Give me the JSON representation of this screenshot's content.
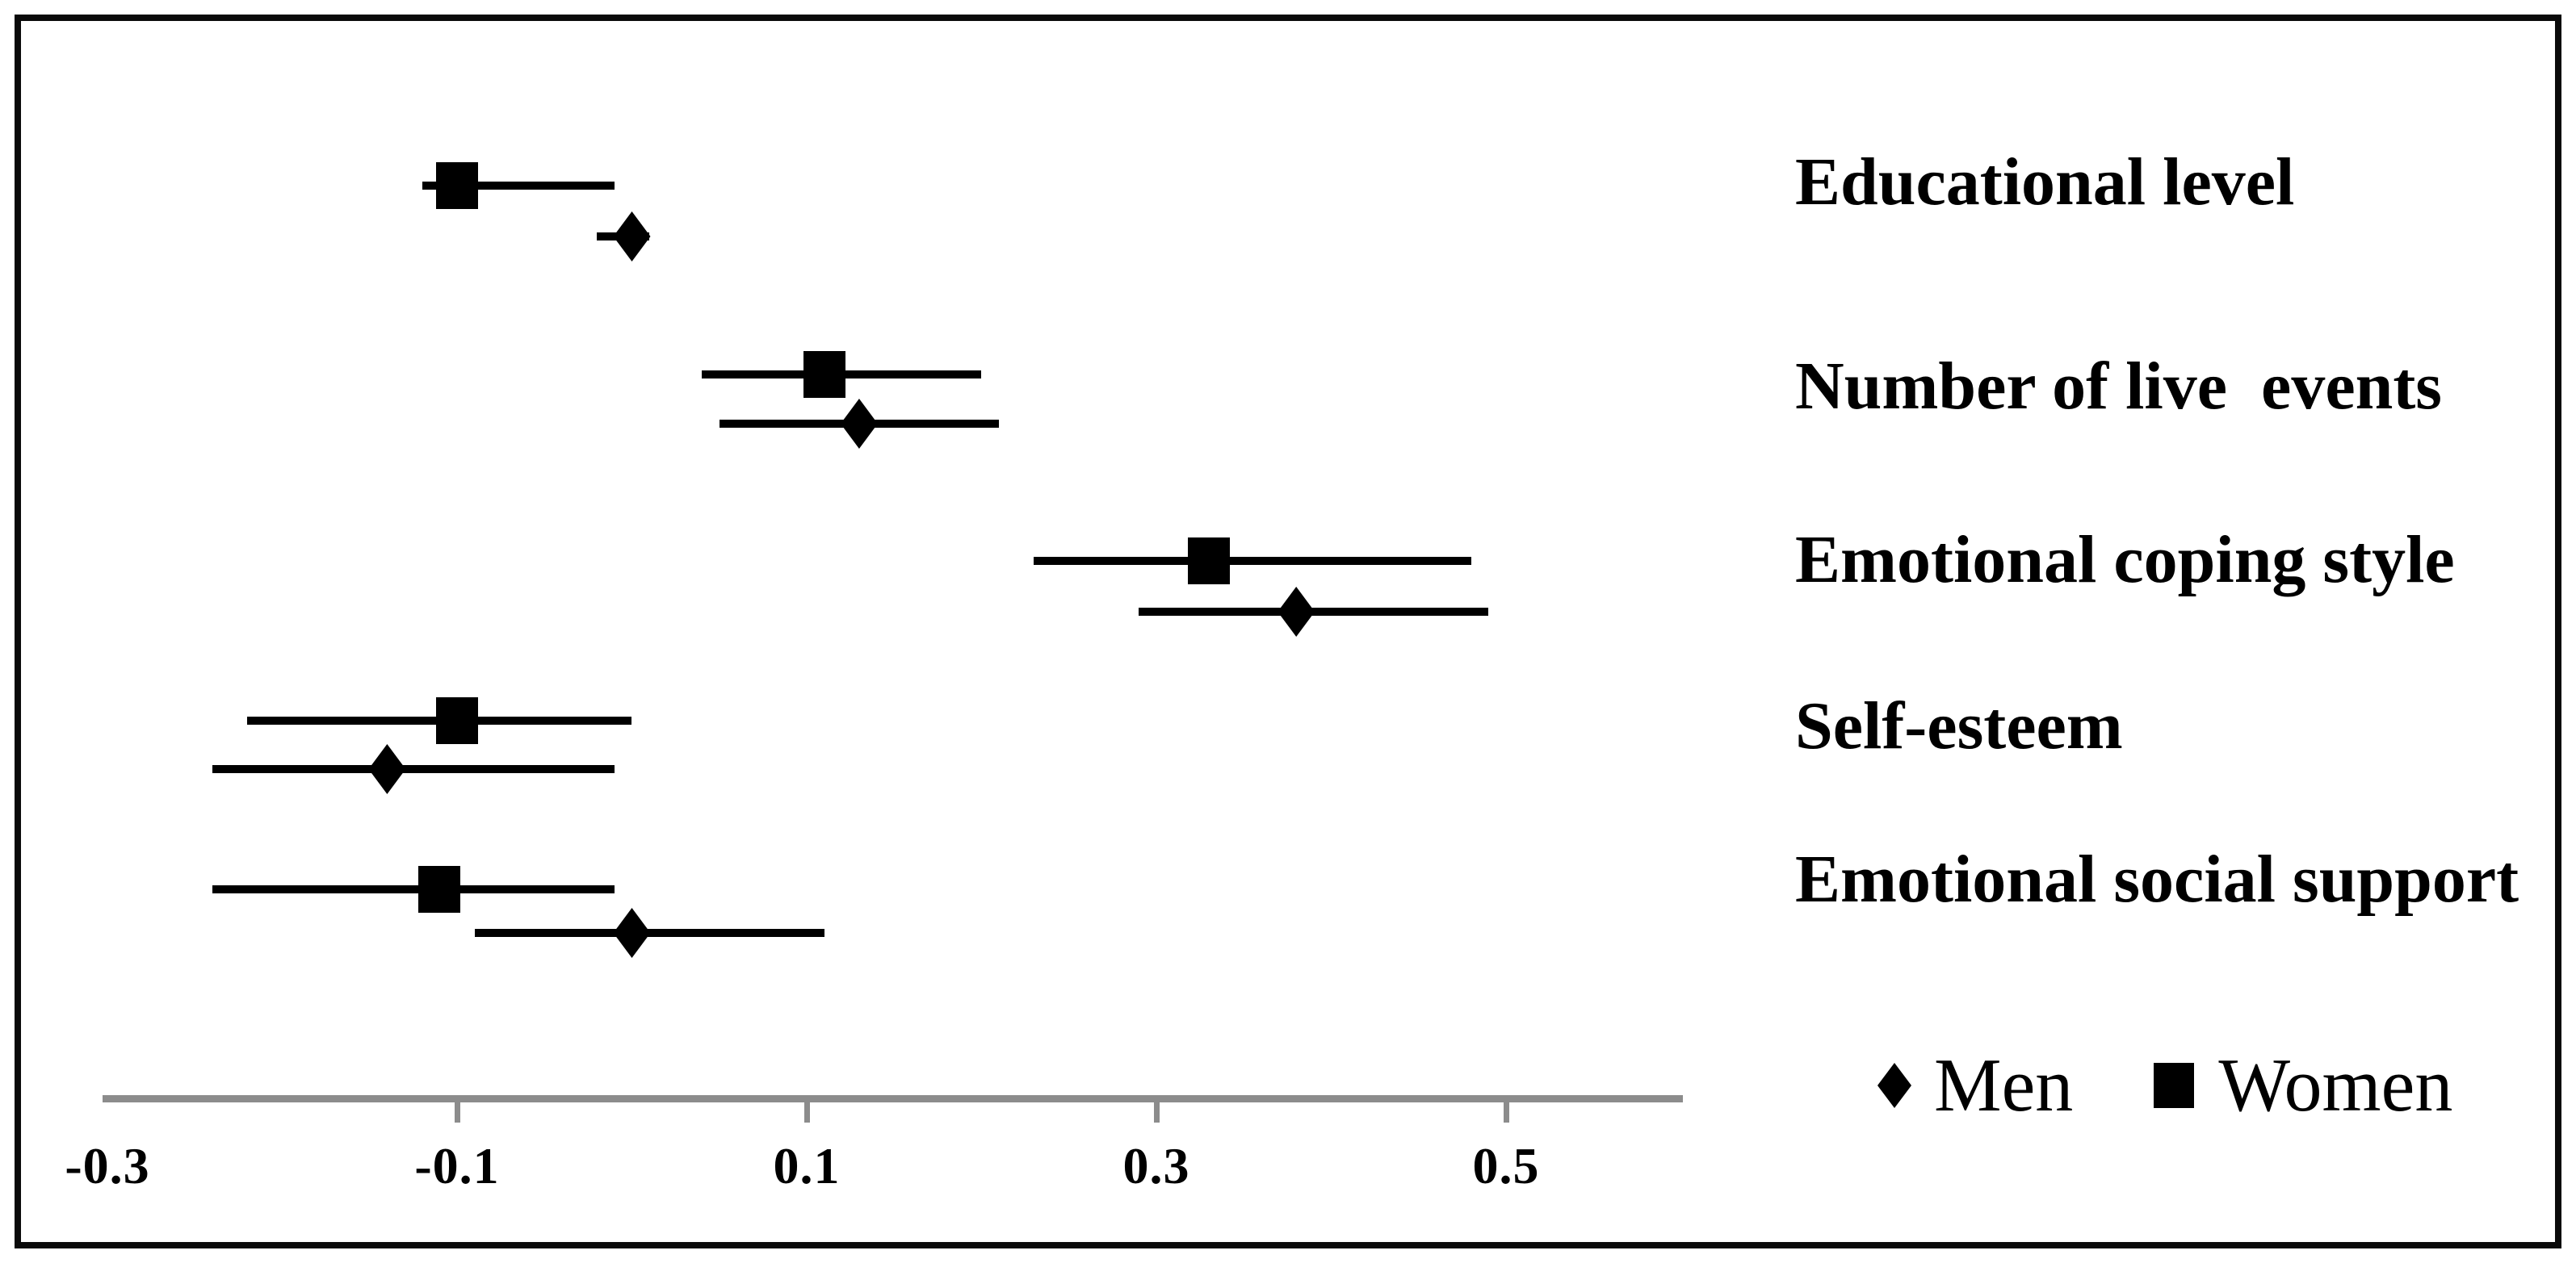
{
  "figure": {
    "background": "#ffffff",
    "border_color": "#0a0a0a",
    "marker_color": "#000000",
    "axis_color": "#8c8c8c"
  },
  "chart_data": {
    "type": "scatter",
    "subtype": "forest-plot-horizontal-ci",
    "title": "",
    "xlabel": "",
    "ylabel": "",
    "grid": false,
    "categories": [
      "Educational level",
      "Number of live  events",
      "Emotional coping style",
      "Self-esteem",
      "Emotional social support"
    ],
    "series": [
      {
        "name": "Women",
        "marker": "square",
        "color": "#000000",
        "points": [
          {
            "category": "Educational level",
            "value": -0.1,
            "ci": [
              -0.12,
              -0.01
            ]
          },
          {
            "category": "Number of live  events",
            "value": 0.11,
            "ci": [
              0.04,
              0.2
            ]
          },
          {
            "category": "Emotional coping style",
            "value": 0.33,
            "ci": [
              0.23,
              0.48
            ]
          },
          {
            "category": "Self-esteem",
            "value": -0.1,
            "ci": [
              -0.22,
              0.0
            ]
          },
          {
            "category": "Emotional social support",
            "value": -0.11,
            "ci": [
              -0.24,
              -0.01
            ]
          }
        ]
      },
      {
        "name": "Men",
        "marker": "diamond",
        "color": "#000000",
        "points": [
          {
            "category": "Educational level",
            "value": 0.0,
            "ci": [
              -0.02,
              0.01
            ]
          },
          {
            "category": "Number of live  events",
            "value": 0.13,
            "ci": [
              0.05,
              0.21
            ]
          },
          {
            "category": "Emotional coping style",
            "value": 0.38,
            "ci": [
              0.29,
              0.49
            ]
          },
          {
            "category": "Self-esteem",
            "value": -0.14,
            "ci": [
              -0.24,
              -0.01
            ]
          },
          {
            "category": "Emotional social support",
            "value": 0.0,
            "ci": [
              -0.09,
              0.11
            ]
          }
        ]
      }
    ],
    "x_axis": {
      "tick_labels": [
        "-0.3",
        "-0.1",
        "0.1",
        "0.3",
        "0.5"
      ],
      "tick_values": [
        -0.3,
        -0.1,
        0.1,
        0.3,
        0.5
      ],
      "marked_ticks": [
        -0.1,
        0.1,
        0.3,
        0.5
      ],
      "axis_span": [
        -0.303,
        0.601
      ],
      "axis_color": "#8c8c8c"
    },
    "legend": {
      "position": "bottom-right",
      "items": [
        {
          "label": "Men",
          "marker": "diamond"
        },
        {
          "label": "Women",
          "marker": "square"
        }
      ]
    }
  }
}
